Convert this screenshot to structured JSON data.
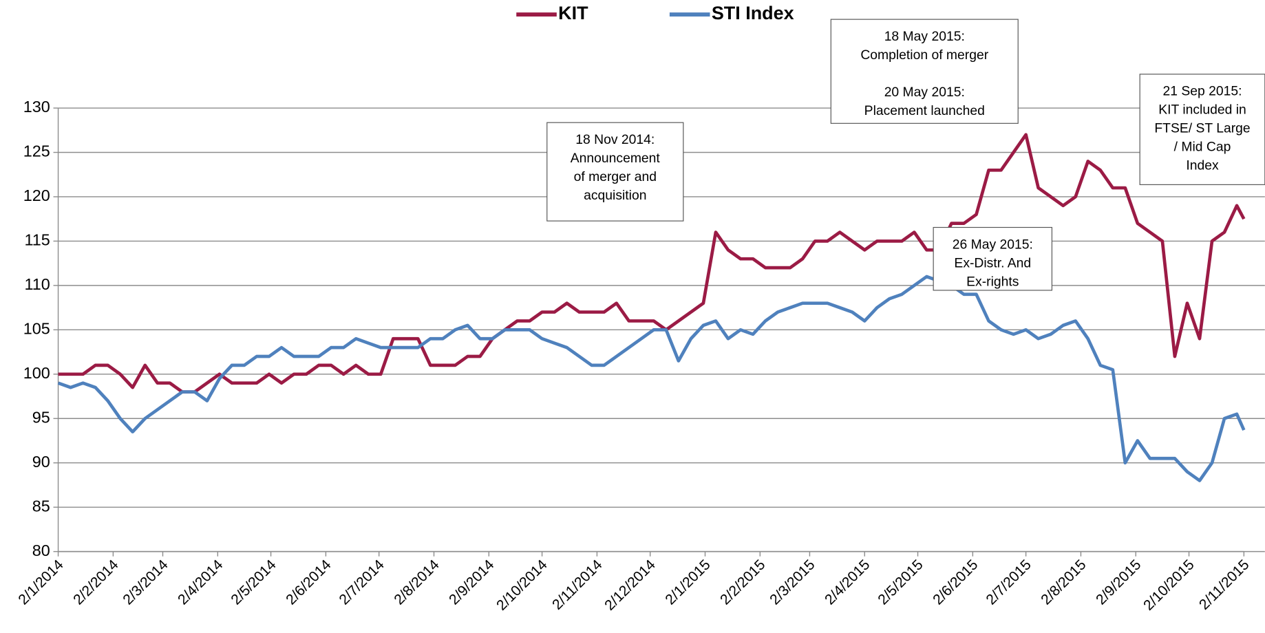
{
  "chart_data": {
    "type": "line",
    "x": [
      "2014-01-02",
      "2014-01-09",
      "2014-01-16",
      "2014-01-23",
      "2014-01-30",
      "2014-02-06",
      "2014-02-13",
      "2014-02-20",
      "2014-02-27",
      "2014-03-06",
      "2014-03-13",
      "2014-03-20",
      "2014-03-27",
      "2014-04-03",
      "2014-04-10",
      "2014-04-17",
      "2014-04-24",
      "2014-05-01",
      "2014-05-08",
      "2014-05-15",
      "2014-05-22",
      "2014-05-29",
      "2014-06-05",
      "2014-06-12",
      "2014-06-19",
      "2014-06-26",
      "2014-07-03",
      "2014-07-10",
      "2014-07-17",
      "2014-07-24",
      "2014-07-31",
      "2014-08-07",
      "2014-08-14",
      "2014-08-21",
      "2014-08-28",
      "2014-09-04",
      "2014-09-11",
      "2014-09-18",
      "2014-09-25",
      "2014-10-02",
      "2014-10-09",
      "2014-10-16",
      "2014-10-23",
      "2014-10-30",
      "2014-11-06",
      "2014-11-13",
      "2014-11-20",
      "2014-11-27",
      "2014-12-04",
      "2014-12-11",
      "2014-12-18",
      "2014-12-25",
      "2015-01-01",
      "2015-01-08",
      "2015-01-15",
      "2015-01-22",
      "2015-01-29",
      "2015-02-05",
      "2015-02-12",
      "2015-02-19",
      "2015-02-26",
      "2015-03-05",
      "2015-03-12",
      "2015-03-19",
      "2015-03-26",
      "2015-04-02",
      "2015-04-09",
      "2015-04-16",
      "2015-04-23",
      "2015-04-30",
      "2015-05-07",
      "2015-05-14",
      "2015-05-21",
      "2015-05-28",
      "2015-06-04",
      "2015-06-11",
      "2015-06-18",
      "2015-06-25",
      "2015-07-02",
      "2015-07-09",
      "2015-07-16",
      "2015-07-23",
      "2015-07-30",
      "2015-08-06",
      "2015-08-13",
      "2015-08-20",
      "2015-08-27",
      "2015-09-03",
      "2015-09-10",
      "2015-09-17",
      "2015-09-24",
      "2015-10-01",
      "2015-10-08",
      "2015-10-15",
      "2015-10-22",
      "2015-10-29",
      "2015-11-02"
    ],
    "series": [
      {
        "name": "KIT",
        "color": "#9b1b45",
        "values": [
          100,
          100,
          100,
          101,
          101,
          100,
          98.5,
          101,
          99,
          99,
          98,
          98,
          99,
          100,
          99,
          99,
          99,
          100,
          99,
          100,
          100,
          101,
          101,
          100,
          101,
          100,
          100,
          104,
          104,
          104,
          101,
          101,
          101,
          102,
          102,
          104,
          105,
          106,
          106,
          107,
          107,
          108,
          107,
          107,
          107,
          108,
          106,
          106,
          106,
          105,
          106,
          107,
          108,
          116,
          114,
          113,
          113,
          112,
          112,
          112,
          113,
          115,
          115,
          116,
          115,
          114,
          115,
          115,
          115,
          116,
          114,
          114,
          117,
          117,
          118,
          123,
          123,
          125,
          127,
          121,
          120,
          119,
          120,
          124,
          123,
          121,
          121,
          117,
          116,
          115,
          102,
          108,
          104,
          115,
          116,
          119,
          117.5
        ]
      },
      {
        "name": "STI Index",
        "color": "#4f81bd",
        "values": [
          99,
          98.5,
          99,
          98.5,
          97,
          95,
          93.5,
          95,
          96,
          97,
          98,
          98,
          97,
          99.5,
          101,
          101,
          102,
          102,
          103,
          102,
          102,
          102,
          103,
          103,
          104,
          103.5,
          103,
          103,
          103,
          103,
          104,
          104,
          105,
          105.5,
          104,
          104,
          105,
          105,
          105,
          104,
          103.5,
          103,
          102,
          101,
          101,
          102,
          103,
          104,
          105,
          105,
          101.5,
          104,
          105.5,
          106,
          104,
          105,
          104.5,
          106,
          107,
          107.5,
          108,
          108,
          108,
          107.5,
          107,
          106,
          107.5,
          108.5,
          109,
          110,
          111,
          110.5,
          110,
          109,
          109,
          106,
          105,
          104.5,
          105,
          104,
          104.5,
          105.5,
          106,
          104,
          101,
          100.5,
          90,
          92.5,
          90.5,
          90.5,
          90.5,
          89,
          88,
          90,
          95,
          95.5,
          93.7
        ]
      }
    ],
    "xlim": [
      "2014-01-02",
      "2015-11-02"
    ],
    "xticks": [
      {
        "value": "2014-01-02",
        "label": "2/1/2014"
      },
      {
        "value": "2014-02-02",
        "label": "2/2/2014"
      },
      {
        "value": "2014-03-02",
        "label": "2/3/2014"
      },
      {
        "value": "2014-04-02",
        "label": "2/4/2014"
      },
      {
        "value": "2014-05-02",
        "label": "2/5/2014"
      },
      {
        "value": "2014-06-02",
        "label": "2/6/2014"
      },
      {
        "value": "2014-07-02",
        "label": "2/7/2014"
      },
      {
        "value": "2014-08-02",
        "label": "2/8/2014"
      },
      {
        "value": "2014-09-02",
        "label": "2/9/2014"
      },
      {
        "value": "2014-10-02",
        "label": "2/10/2014"
      },
      {
        "value": "2014-11-02",
        "label": "2/11/2014"
      },
      {
        "value": "2014-12-02",
        "label": "2/12/2014"
      },
      {
        "value": "2015-01-02",
        "label": "2/1/2015"
      },
      {
        "value": "2015-02-02",
        "label": "2/2/2015"
      },
      {
        "value": "2015-03-02",
        "label": "2/3/2015"
      },
      {
        "value": "2015-04-02",
        "label": "2/4/2015"
      },
      {
        "value": "2015-05-02",
        "label": "2/5/2015"
      },
      {
        "value": "2015-06-02",
        "label": "2/6/2015"
      },
      {
        "value": "2015-07-02",
        "label": "2/7/2015"
      },
      {
        "value": "2015-08-02",
        "label": "2/8/2015"
      },
      {
        "value": "2015-09-02",
        "label": "2/9/2015"
      },
      {
        "value": "2015-10-02",
        "label": "2/10/2015"
      },
      {
        "value": "2015-11-02",
        "label": "2/11/2015"
      }
    ],
    "ylim": [
      80,
      130
    ],
    "yticks": [
      80,
      85,
      90,
      95,
      100,
      105,
      110,
      115,
      120,
      125,
      130
    ],
    "grid": true,
    "legend": "top",
    "annotations": [
      {
        "lines": [
          "18 Nov 2014:",
          "Announcement",
          "of merger and",
          "acquisition"
        ]
      },
      {
        "lines": [
          "18 May 2015:",
          "Completion of merger",
          "20 May 2015:",
          "Placement launched"
        ]
      },
      {
        "lines": [
          "26 May 2015:",
          "Ex-Distr. And",
          "Ex-rights"
        ]
      },
      {
        "lines": [
          "21 Sep 2015:",
          "KIT included in",
          "FTSE/ ST Large",
          "/ Mid Cap",
          "Index"
        ]
      }
    ]
  }
}
